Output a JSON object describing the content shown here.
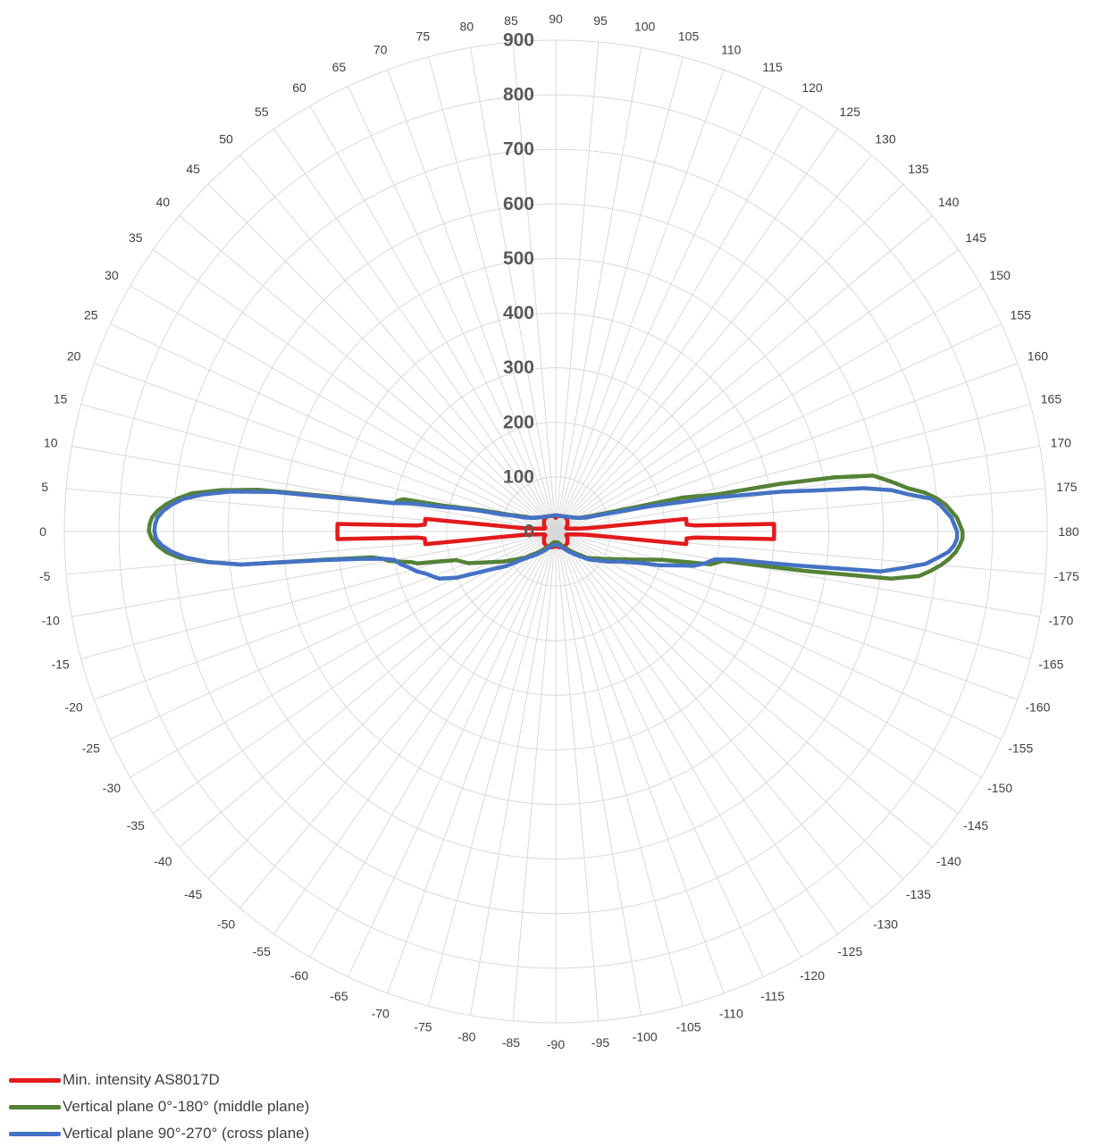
{
  "chart_data": {
    "type": "polar-line",
    "title": "",
    "radial_axis": {
      "min": 0,
      "max": 900,
      "step": 100,
      "tick_labels": [
        "0",
        "100",
        "200",
        "300",
        "400",
        "500",
        "600",
        "700",
        "800",
        "900"
      ]
    },
    "angular_axis": {
      "step": 5,
      "tick_labels": [
        "90",
        "95",
        "100",
        "105",
        "110",
        "115",
        "120",
        "125",
        "130",
        "135",
        "140",
        "145",
        "150",
        "155",
        "160",
        "165",
        "170",
        "175",
        "180",
        "-175",
        "-170",
        "-165",
        "-160",
        "-155",
        "-150",
        "-145",
        "-140",
        "-135",
        "-130",
        "-125",
        "-120",
        "-115",
        "-110",
        "-105",
        "-100",
        "-95",
        "-90",
        "-85",
        "-80",
        "-75",
        "-70",
        "-65",
        "-60",
        "-55",
        "-50",
        "-45",
        "-40",
        "-35",
        "-30",
        "-25",
        "-20",
        "-15",
        "-10",
        "-5",
        "0",
        "5",
        "10",
        "15",
        "20",
        "25",
        "30",
        "35",
        "40",
        "45",
        "50",
        "55",
        "60",
        "65",
        "70",
        "75",
        "80",
        "85"
      ]
    },
    "grid": true,
    "legend_position": "bottom-left",
    "series": [
      {
        "name": "Min. intensity AS8017D",
        "color": "#e31a1c",
        "points": [
          [
            0,
            400
          ],
          [
            2,
            400
          ],
          [
            2.5,
            255
          ],
          [
            3,
            240
          ],
          [
            5.5,
            240
          ],
          [
            6,
            60
          ],
          [
            7,
            45
          ],
          [
            9,
            35
          ],
          [
            10,
            30
          ],
          [
            12,
            25
          ],
          [
            14,
            22
          ],
          [
            18,
            20
          ],
          [
            30,
            25
          ],
          [
            45,
            30
          ],
          [
            60,
            32
          ],
          [
            75,
            30
          ],
          [
            85,
            28
          ],
          [
            90,
            25
          ],
          [
            95,
            28
          ],
          [
            105,
            30
          ],
          [
            120,
            32
          ],
          [
            135,
            30
          ],
          [
            150,
            25
          ],
          [
            162,
            20
          ],
          [
            166,
            22
          ],
          [
            168,
            25
          ],
          [
            170,
            30
          ],
          [
            171,
            35
          ],
          [
            173,
            45
          ],
          [
            174,
            60
          ],
          [
            174.5,
            240
          ],
          [
            177,
            240
          ],
          [
            177.5,
            255
          ],
          [
            178,
            400
          ],
          [
            180,
            400
          ],
          [
            -178,
            400
          ],
          [
            -177.5,
            255
          ],
          [
            -177,
            240
          ],
          [
            -174.5,
            240
          ],
          [
            -174,
            60
          ],
          [
            -173,
            45
          ],
          [
            -171,
            35
          ],
          [
            -170,
            30
          ],
          [
            -168,
            25
          ],
          [
            -166,
            22
          ],
          [
            -162,
            20
          ],
          [
            -150,
            25
          ],
          [
            -135,
            30
          ],
          [
            -120,
            32
          ],
          [
            -105,
            30
          ],
          [
            -95,
            28
          ],
          [
            -90,
            25
          ],
          [
            -85,
            28
          ],
          [
            -75,
            30
          ],
          [
            -60,
            32
          ],
          [
            -45,
            30
          ],
          [
            -30,
            25
          ],
          [
            -18,
            20
          ],
          [
            -14,
            22
          ],
          [
            -12,
            25
          ],
          [
            -10,
            30
          ],
          [
            -9,
            35
          ],
          [
            -7,
            45
          ],
          [
            -6,
            60
          ],
          [
            -5.5,
            240
          ],
          [
            -3,
            240
          ],
          [
            -2.5,
            255
          ],
          [
            -2,
            400
          ],
          [
            0,
            400
          ]
        ]
      },
      {
        "name": "Vertical plane 0°-180° (middle plane)",
        "color": "#548235",
        "points": [
          [
            0,
            745
          ],
          [
            1,
            744
          ],
          [
            2,
            740
          ],
          [
            3,
            730
          ],
          [
            4,
            715
          ],
          [
            5,
            695
          ],
          [
            6,
            670
          ],
          [
            7,
            620
          ],
          [
            8,
            550
          ],
          [
            9,
            400
          ],
          [
            10,
            300
          ],
          [
            11,
            295
          ],
          [
            12,
            285
          ],
          [
            13,
            210
          ],
          [
            14,
            180
          ],
          [
            15,
            160
          ],
          [
            16,
            140
          ],
          [
            18,
            110
          ],
          [
            20,
            90
          ],
          [
            25,
            65
          ],
          [
            30,
            50
          ],
          [
            40,
            40
          ],
          [
            50,
            35
          ],
          [
            70,
            30
          ],
          [
            90,
            30
          ],
          [
            110,
            30
          ],
          [
            130,
            35
          ],
          [
            140,
            40
          ],
          [
            150,
            50
          ],
          [
            155,
            65
          ],
          [
            160,
            100
          ],
          [
            165,
            240
          ],
          [
            167,
            300
          ],
          [
            168,
            420
          ],
          [
            169,
            520
          ],
          [
            170,
            590
          ],
          [
            171,
            610
          ],
          [
            172,
            630
          ],
          [
            173,
            650
          ],
          [
            174,
            680
          ],
          [
            175,
            700
          ],
          [
            176,
            715
          ],
          [
            177,
            725
          ],
          [
            178,
            735
          ],
          [
            179,
            740
          ],
          [
            180,
            745
          ],
          [
            -179,
            745
          ],
          [
            -178,
            740
          ],
          [
            -177,
            733
          ],
          [
            -176,
            722
          ],
          [
            -175,
            708
          ],
          [
            -174,
            690
          ],
          [
            -173,
            670
          ],
          [
            -172,
            620
          ],
          [
            -171,
            460
          ],
          [
            -170,
            310
          ],
          [
            -169,
            300
          ],
          [
            -168,
            290
          ],
          [
            -167,
            250
          ],
          [
            -165,
            200
          ],
          [
            -160,
            150
          ],
          [
            -150,
            100
          ],
          [
            -140,
            75
          ],
          [
            -130,
            50
          ],
          [
            -120,
            35
          ],
          [
            -110,
            25
          ],
          [
            -100,
            20
          ],
          [
            -90,
            20
          ],
          [
            -80,
            20
          ],
          [
            -70,
            25
          ],
          [
            -60,
            35
          ],
          [
            -50,
            50
          ],
          [
            -40,
            75
          ],
          [
            -30,
            110
          ],
          [
            -20,
            170
          ],
          [
            -16,
            190
          ],
          [
            -14,
            230
          ],
          [
            -13,
            260
          ],
          [
            -12,
            270
          ],
          [
            -11,
            290
          ],
          [
            -10,
            310
          ],
          [
            -9,
            320
          ],
          [
            -8,
            340
          ],
          [
            -7,
            420
          ],
          [
            -6,
            580
          ],
          [
            -5,
            640
          ],
          [
            -4,
            690
          ],
          [
            -3,
            715
          ],
          [
            -2,
            730
          ],
          [
            -1,
            740
          ],
          [
            0,
            745
          ]
        ]
      },
      {
        "name": "Vertical plane 90°-270° (cross plane)",
        "color": "#4472c4",
        "points": [
          [
            0,
            735
          ],
          [
            1,
            734
          ],
          [
            2,
            730
          ],
          [
            3,
            720
          ],
          [
            4,
            705
          ],
          [
            5,
            685
          ],
          [
            6,
            650
          ],
          [
            7,
            600
          ],
          [
            8,
            520
          ],
          [
            9,
            380
          ],
          [
            10,
            300
          ],
          [
            11,
            270
          ],
          [
            12,
            220
          ],
          [
            14,
            170
          ],
          [
            15,
            150
          ],
          [
            16,
            130
          ],
          [
            18,
            100
          ],
          [
            20,
            85
          ],
          [
            25,
            60
          ],
          [
            30,
            50
          ],
          [
            40,
            40
          ],
          [
            50,
            35
          ],
          [
            70,
            30
          ],
          [
            90,
            30
          ],
          [
            110,
            30
          ],
          [
            130,
            35
          ],
          [
            140,
            40
          ],
          [
            150,
            50
          ],
          [
            155,
            60
          ],
          [
            160,
            90
          ],
          [
            165,
            180
          ],
          [
            168,
            300
          ],
          [
            170,
            420
          ],
          [
            171,
            480
          ],
          [
            172,
            570
          ],
          [
            173,
            620
          ],
          [
            174,
            650
          ],
          [
            175,
            690
          ],
          [
            176,
            705
          ],
          [
            177,
            715
          ],
          [
            178,
            725
          ],
          [
            179,
            730
          ],
          [
            180,
            735
          ],
          [
            -179,
            735
          ],
          [
            -178,
            730
          ],
          [
            -177,
            720
          ],
          [
            -176,
            700
          ],
          [
            -175,
            680
          ],
          [
            -174,
            640
          ],
          [
            -173,
            600
          ],
          [
            -172,
            450
          ],
          [
            -171,
            330
          ],
          [
            -170,
            295
          ],
          [
            -168,
            280
          ],
          [
            -166,
            260
          ],
          [
            -165,
            240
          ],
          [
            -162,
            200
          ],
          [
            -160,
            170
          ],
          [
            -155,
            130
          ],
          [
            -150,
            110
          ],
          [
            -140,
            80
          ],
          [
            -130,
            55
          ],
          [
            -120,
            40
          ],
          [
            -110,
            30
          ],
          [
            -100,
            25
          ],
          [
            -90,
            25
          ],
          [
            -80,
            25
          ],
          [
            -70,
            30
          ],
          [
            -60,
            40
          ],
          [
            -50,
            55
          ],
          [
            -40,
            80
          ],
          [
            -35,
            110
          ],
          [
            -30,
            140
          ],
          [
            -25,
            200
          ],
          [
            -22,
            230
          ],
          [
            -20,
            240
          ],
          [
            -18,
            250
          ],
          [
            -16,
            265
          ],
          [
            -14,
            275
          ],
          [
            -12,
            290
          ],
          [
            -10,
            300
          ],
          [
            -9,
            320
          ],
          [
            -8,
            360
          ],
          [
            -7,
            430
          ],
          [
            -6,
            580
          ],
          [
            -5,
            640
          ],
          [
            -4,
            680
          ],
          [
            -3,
            705
          ],
          [
            -2,
            722
          ],
          [
            -1,
            732
          ],
          [
            0,
            735
          ]
        ]
      }
    ]
  }
}
